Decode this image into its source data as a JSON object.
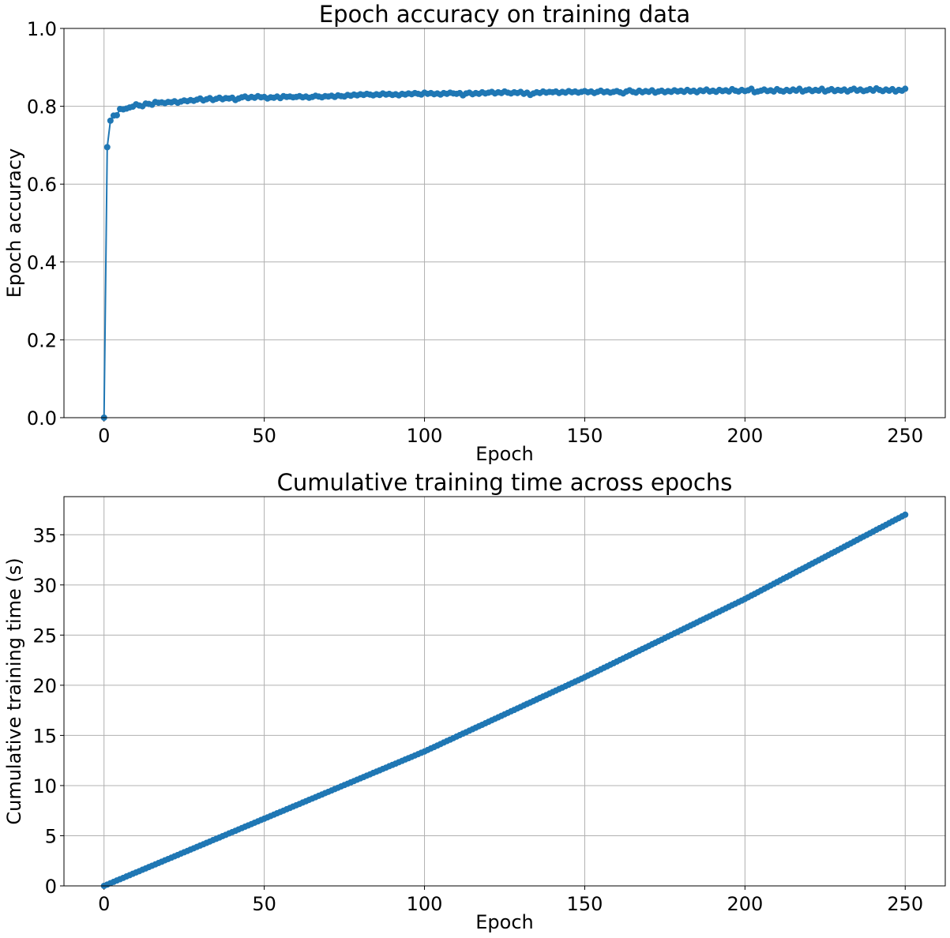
{
  "chart_data": [
    {
      "type": "line",
      "title": "Epoch accuracy on training data",
      "xlabel": "Epoch",
      "ylabel": "Epoch accuracy",
      "xlim": [
        -12.5,
        262.5
      ],
      "xticks": [
        0,
        50,
        100,
        150,
        200,
        250
      ],
      "ylim": [
        0,
        1
      ],
      "yticks": [
        {
          "value": 0,
          "label": "0.0"
        },
        0.2,
        0.4,
        0.6,
        0.8,
        {
          "value": 1,
          "label": "1.0"
        }
      ],
      "grid": true,
      "x": [
        0,
        1,
        2,
        3,
        4,
        5,
        6,
        7,
        8,
        9,
        10,
        11,
        12,
        13,
        14,
        15,
        16,
        17,
        18,
        19,
        20,
        21,
        22,
        23,
        24,
        25,
        26,
        27,
        28,
        29,
        30,
        31,
        32,
        33,
        34,
        35,
        36,
        37,
        38,
        39,
        40,
        41,
        42,
        43,
        44,
        45,
        46,
        47,
        48,
        49,
        50,
        51,
        52,
        53,
        54,
        55,
        56,
        57,
        58,
        59,
        60,
        61,
        62,
        63,
        64,
        65,
        66,
        67,
        68,
        69,
        70,
        71,
        72,
        73,
        74,
        75,
        76,
        77,
        78,
        79,
        80,
        81,
        82,
        83,
        84,
        85,
        86,
        87,
        88,
        89,
        90,
        91,
        92,
        93,
        94,
        95,
        96,
        97,
        98,
        99,
        100,
        101,
        102,
        103,
        104,
        105,
        106,
        107,
        108,
        109,
        110,
        111,
        112,
        113,
        114,
        115,
        116,
        117,
        118,
        119,
        120,
        121,
        122,
        123,
        124,
        125,
        126,
        127,
        128,
        129,
        130,
        131,
        132,
        133,
        134,
        135,
        136,
        137,
        138,
        139,
        140,
        141,
        142,
        143,
        144,
        145,
        146,
        147,
        148,
        149,
        150,
        151,
        152,
        153,
        154,
        155,
        156,
        157,
        158,
        159,
        160,
        161,
        162,
        163,
        164,
        165,
        166,
        167,
        168,
        169,
        170,
        171,
        172,
        173,
        174,
        175,
        176,
        177,
        178,
        179,
        180,
        181,
        182,
        183,
        184,
        185,
        186,
        187,
        188,
        189,
        190,
        191,
        192,
        193,
        194,
        195,
        196,
        197,
        198,
        199,
        200,
        201,
        202,
        203,
        204,
        205,
        206,
        207,
        208,
        209,
        210,
        211,
        212,
        213,
        214,
        215,
        216,
        217,
        218,
        219,
        220,
        221,
        222,
        223,
        224,
        225,
        226,
        227,
        228,
        229,
        230,
        231,
        232,
        233,
        234,
        235,
        236,
        237,
        238,
        239,
        240,
        241,
        242,
        243,
        244,
        245,
        246,
        247,
        248,
        249,
        250
      ],
      "series": [
        {
          "name": "accuracy",
          "color": "#1f77b4",
          "values": [
            0,
            0.695,
            0.763,
            0.776,
            0.777,
            0.793,
            0.792,
            0.794,
            0.797,
            0.799,
            0.805,
            0.802,
            0.8,
            0.807,
            0.806,
            0.804,
            0.811,
            0.809,
            0.81,
            0.808,
            0.811,
            0.81,
            0.813,
            0.809,
            0.812,
            0.815,
            0.813,
            0.816,
            0.814,
            0.817,
            0.82,
            0.815,
            0.818,
            0.821,
            0.816,
            0.819,
            0.822,
            0.818,
            0.821,
            0.82,
            0.822,
            0.816,
            0.82,
            0.823,
            0.825,
            0.821,
            0.824,
            0.822,
            0.826,
            0.823,
            0.824,
            0.82,
            0.823,
            0.822,
            0.825,
            0.821,
            0.826,
            0.824,
            0.825,
            0.823,
            0.824,
            0.826,
            0.823,
            0.825,
            0.822,
            0.824,
            0.827,
            0.825,
            0.823,
            0.826,
            0.825,
            0.827,
            0.824,
            0.828,
            0.826,
            0.825,
            0.829,
            0.827,
            0.83,
            0.828,
            0.831,
            0.829,
            0.832,
            0.83,
            0.828,
            0.831,
            0.829,
            0.833,
            0.83,
            0.832,
            0.829,
            0.831,
            0.828,
            0.832,
            0.83,
            0.833,
            0.831,
            0.834,
            0.832,
            0.83,
            0.835,
            0.832,
            0.834,
            0.831,
            0.833,
            0.83,
            0.834,
            0.832,
            0.835,
            0.833,
            0.832,
            0.834,
            0.828,
            0.833,
            0.835,
            0.831,
            0.834,
            0.832,
            0.836,
            0.833,
            0.835,
            0.837,
            0.833,
            0.836,
            0.834,
            0.838,
            0.835,
            0.833,
            0.836,
            0.834,
            0.837,
            0.832,
            0.835,
            0.829,
            0.833,
            0.836,
            0.834,
            0.838,
            0.835,
            0.837,
            0.836,
            0.838,
            0.834,
            0.837,
            0.835,
            0.839,
            0.836,
            0.838,
            0.835,
            0.837,
            0.839,
            0.836,
            0.838,
            0.834,
            0.837,
            0.84,
            0.836,
            0.838,
            0.835,
            0.837,
            0.839,
            0.836,
            0.833,
            0.838,
            0.841,
            0.837,
            0.835,
            0.84,
            0.836,
            0.839,
            0.837,
            0.841,
            0.835,
            0.838,
            0.84,
            0.836,
            0.839,
            0.837,
            0.841,
            0.838,
            0.84,
            0.837,
            0.842,
            0.838,
            0.84,
            0.836,
            0.841,
            0.839,
            0.843,
            0.838,
            0.84,
            0.837,
            0.842,
            0.839,
            0.841,
            0.838,
            0.844,
            0.84,
            0.838,
            0.842,
            0.839,
            0.841,
            0.845,
            0.836,
            0.838,
            0.84,
            0.843,
            0.839,
            0.841,
            0.838,
            0.844,
            0.84,
            0.838,
            0.842,
            0.839,
            0.843,
            0.84,
            0.845,
            0.838,
            0.841,
            0.843,
            0.839,
            0.842,
            0.84,
            0.845,
            0.838,
            0.841,
            0.844,
            0.839,
            0.842,
            0.84,
            0.843,
            0.838,
            0.842,
            0.845,
            0.84,
            0.843,
            0.839,
            0.841,
            0.844,
            0.84,
            0.846,
            0.842,
            0.839,
            0.843,
            0.84,
            0.844,
            0.838,
            0.842,
            0.84,
            0.845
          ]
        }
      ]
    },
    {
      "type": "line",
      "title": "Cumulative training time across epochs",
      "xlabel": "Epoch",
      "ylabel": "Cumulative training time (s)",
      "xlim": [
        -12.5,
        262.5
      ],
      "xticks": [
        0,
        50,
        100,
        150,
        200,
        250
      ],
      "ylim": [
        0,
        38.8
      ],
      "yticks": [
        0,
        5,
        10,
        15,
        20,
        25,
        30,
        35
      ],
      "grid": true,
      "x": [
        0,
        1,
        2,
        3,
        4,
        5,
        6,
        7,
        8,
        9,
        10,
        11,
        12,
        13,
        14,
        15,
        16,
        17,
        18,
        19,
        20,
        21,
        22,
        23,
        24,
        25,
        26,
        27,
        28,
        29,
        30,
        31,
        32,
        33,
        34,
        35,
        36,
        37,
        38,
        39,
        40,
        41,
        42,
        43,
        44,
        45,
        46,
        47,
        48,
        49,
        50,
        51,
        52,
        53,
        54,
        55,
        56,
        57,
        58,
        59,
        60,
        61,
        62,
        63,
        64,
        65,
        66,
        67,
        68,
        69,
        70,
        71,
        72,
        73,
        74,
        75,
        76,
        77,
        78,
        79,
        80,
        81,
        82,
        83,
        84,
        85,
        86,
        87,
        88,
        89,
        90,
        91,
        92,
        93,
        94,
        95,
        96,
        97,
        98,
        99,
        100,
        101,
        102,
        103,
        104,
        105,
        106,
        107,
        108,
        109,
        110,
        111,
        112,
        113,
        114,
        115,
        116,
        117,
        118,
        119,
        120,
        121,
        122,
        123,
        124,
        125,
        126,
        127,
        128,
        129,
        130,
        131,
        132,
        133,
        134,
        135,
        136,
        137,
        138,
        139,
        140,
        141,
        142,
        143,
        144,
        145,
        146,
        147,
        148,
        149,
        150,
        151,
        152,
        153,
        154,
        155,
        156,
        157,
        158,
        159,
        160,
        161,
        162,
        163,
        164,
        165,
        166,
        167,
        168,
        169,
        170,
        171,
        172,
        173,
        174,
        175,
        176,
        177,
        178,
        179,
        180,
        181,
        182,
        183,
        184,
        185,
        186,
        187,
        188,
        189,
        190,
        191,
        192,
        193,
        194,
        195,
        196,
        197,
        198,
        199,
        200,
        201,
        202,
        203,
        204,
        205,
        206,
        207,
        208,
        209,
        210,
        211,
        212,
        213,
        214,
        215,
        216,
        217,
        218,
        219,
        220,
        221,
        222,
        223,
        224,
        225,
        226,
        227,
        228,
        229,
        230,
        231,
        232,
        233,
        234,
        235,
        236,
        237,
        238,
        239,
        240,
        241,
        242,
        243,
        244,
        245,
        246,
        247,
        248,
        249,
        250
      ],
      "series": [
        {
          "name": "time",
          "color": "#1f77b4",
          "values": [
            0,
            0.13,
            0.27,
            0.4,
            0.54,
            0.67,
            0.8,
            0.94,
            1.07,
            1.21,
            1.34,
            1.47,
            1.61,
            1.74,
            1.88,
            2.01,
            2.14,
            2.28,
            2.41,
            2.55,
            2.68,
            2.81,
            2.95,
            3.08,
            3.22,
            3.35,
            3.48,
            3.62,
            3.75,
            3.89,
            4.02,
            4.15,
            4.29,
            4.42,
            4.56,
            4.69,
            4.82,
            4.96,
            5.09,
            5.23,
            5.36,
            5.49,
            5.63,
            5.76,
            5.9,
            6.03,
            6.16,
            6.3,
            6.43,
            6.57,
            6.7,
            6.83,
            6.97,
            7.1,
            7.24,
            7.37,
            7.5,
            7.64,
            7.77,
            7.91,
            8.04,
            8.17,
            8.31,
            8.44,
            8.58,
            8.71,
            8.84,
            8.98,
            9.11,
            9.25,
            9.38,
            9.51,
            9.65,
            9.78,
            9.92,
            10.05,
            10.18,
            10.32,
            10.45,
            10.59,
            10.72,
            10.85,
            10.99,
            11.12,
            11.26,
            11.39,
            11.52,
            11.66,
            11.79,
            11.93,
            12.06,
            12.19,
            12.33,
            12.46,
            12.6,
            12.73,
            12.86,
            13.0,
            13.13,
            13.27,
            13.4,
            13.55,
            13.7,
            13.84,
            13.99,
            14.14,
            14.29,
            14.44,
            14.58,
            14.73,
            14.88,
            15.03,
            15.18,
            15.32,
            15.47,
            15.62,
            15.77,
            15.92,
            16.06,
            16.21,
            16.36,
            16.51,
            16.66,
            16.8,
            16.95,
            17.1,
            17.25,
            17.4,
            17.54,
            17.69,
            17.84,
            17.99,
            18.14,
            18.28,
            18.43,
            18.58,
            18.73,
            18.88,
            19.02,
            19.17,
            19.32,
            19.47,
            19.62,
            19.76,
            19.91,
            20.06,
            20.21,
            20.36,
            20.5,
            20.65,
            20.8,
            20.96,
            21.11,
            21.27,
            21.42,
            21.58,
            21.74,
            21.89,
            22.05,
            22.2,
            22.36,
            22.52,
            22.67,
            22.83,
            22.98,
            23.14,
            23.3,
            23.45,
            23.61,
            23.76,
            23.92,
            24.08,
            24.23,
            24.39,
            24.54,
            24.7,
            24.86,
            25.01,
            25.17,
            25.32,
            25.48,
            25.64,
            25.79,
            25.95,
            26.1,
            26.26,
            26.42,
            26.57,
            26.73,
            26.88,
            27.04,
            27.2,
            27.35,
            27.51,
            27.66,
            27.82,
            27.98,
            28.13,
            28.29,
            28.44,
            28.6,
            28.77,
            28.94,
            29.1,
            29.27,
            29.44,
            29.61,
            29.78,
            29.94,
            30.11,
            30.28,
            30.45,
            30.62,
            30.78,
            30.95,
            31.12,
            31.29,
            31.46,
            31.62,
            31.79,
            31.96,
            32.13,
            32.3,
            32.46,
            32.63,
            32.8,
            32.97,
            33.14,
            33.3,
            33.47,
            33.64,
            33.81,
            33.98,
            34.14,
            34.31,
            34.48,
            34.65,
            34.82,
            34.98,
            35.15,
            35.32,
            35.49,
            35.66,
            35.82,
            35.99,
            36.16,
            36.33,
            36.5,
            36.66,
            36.83,
            37.0
          ]
        }
      ]
    }
  ]
}
